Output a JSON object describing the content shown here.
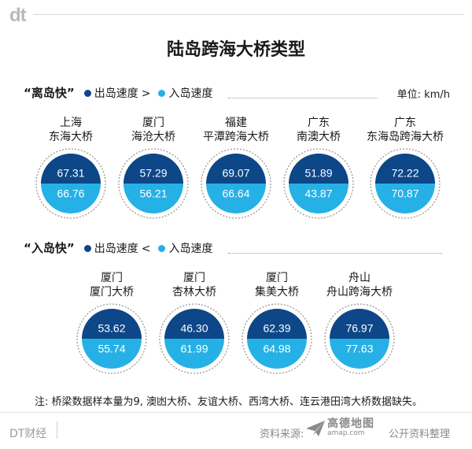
{
  "header": {
    "logo_text": "dt"
  },
  "colors": {
    "out_dark": "#0d4788",
    "in_light": "#26b1e6",
    "ring": "#9a9a9a"
  },
  "chart_data": {
    "type": "bar",
    "title": "陆岛跨海大桥类型",
    "unit": "单位: km/h",
    "legend": {
      "out_label": "出岛速度",
      "in_label": "入岛速度"
    },
    "groups": [
      {
        "title": "“离岛快”",
        "operator": ">",
        "bridges": [
          {
            "place": "上海",
            "name": "东海大桥",
            "out_speed": 67.31,
            "in_speed": 66.76
          },
          {
            "place": "厦门",
            "name": "海沧大桥",
            "out_speed": 57.29,
            "in_speed": 56.21
          },
          {
            "place": "福建",
            "name": "平潭跨海大桥",
            "out_speed": 69.07,
            "in_speed": 66.64
          },
          {
            "place": "广东",
            "name": "南澳大桥",
            "out_speed": 51.89,
            "in_speed": 43.87
          },
          {
            "place": "广东",
            "name": "东海岛跨海大桥",
            "out_speed": 72.22,
            "in_speed": 70.87
          }
        ]
      },
      {
        "title": "“入岛快”",
        "operator": "<",
        "bridges": [
          {
            "place": "厦门",
            "name": "厦门大桥",
            "out_speed": 53.62,
            "in_speed": 55.74
          },
          {
            "place": "厦门",
            "name": "杏林大桥",
            "out_speed": 46.3,
            "in_speed": 61.99
          },
          {
            "place": "厦门",
            "name": "集美大桥",
            "out_speed": 62.39,
            "in_speed": 64.98
          },
          {
            "place": "舟山",
            "name": "舟山跨海大桥",
            "out_speed": 76.97,
            "in_speed": 77.63
          }
        ]
      }
    ]
  },
  "note": "注: 桥梁数据样本量为9, 澳凼大桥、友谊大桥、西湾大桥、连云港田湾大桥数据缺失。",
  "footer": {
    "brand": "DT财经",
    "source_label": "资料来源:",
    "amap_cn": "高德地图",
    "amap_en": "amap.com",
    "source_suffix": "公开资料整理"
  }
}
